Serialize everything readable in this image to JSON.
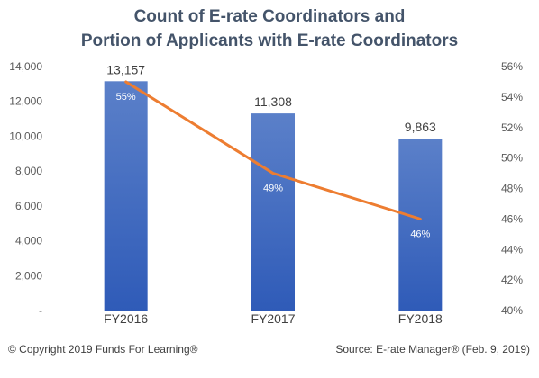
{
  "chart_data": {
    "type": "bar",
    "title_lines": [
      "Count of E-rate Coordinators and",
      "Portion of Applicants with E-rate Coordinators"
    ],
    "categories": [
      "FY2016",
      "FY2017",
      "FY2018"
    ],
    "series": [
      {
        "type": "bar",
        "axis": "left",
        "values": [
          13157,
          11308,
          9863
        ],
        "labels": [
          "13,157",
          "11,308",
          "9,863"
        ]
      },
      {
        "type": "line",
        "axis": "right",
        "values": [
          55,
          49,
          46
        ],
        "labels": [
          "55%",
          "49%",
          "46%"
        ]
      }
    ],
    "left_axis": {
      "ylim": [
        0,
        14000
      ],
      "ticks": [
        "-",
        "2,000",
        "4,000",
        "6,000",
        "8,000",
        "10,000",
        "12,000",
        "14,000"
      ]
    },
    "right_axis": {
      "ylim": [
        40,
        56
      ],
      "ticks": [
        "40%",
        "42%",
        "44%",
        "46%",
        "48%",
        "50%",
        "52%",
        "54%",
        "56%"
      ]
    },
    "grid": false,
    "colors": {
      "bar_top": "#5b80c9",
      "bar_bottom": "#2f5bb8",
      "line": "#ed7d31",
      "title": "#44546a"
    }
  },
  "footer": {
    "left": "© Copyright 2019 Funds For Learning®",
    "right": "Source: E-rate Manager® (Feb. 9, 2019)"
  }
}
